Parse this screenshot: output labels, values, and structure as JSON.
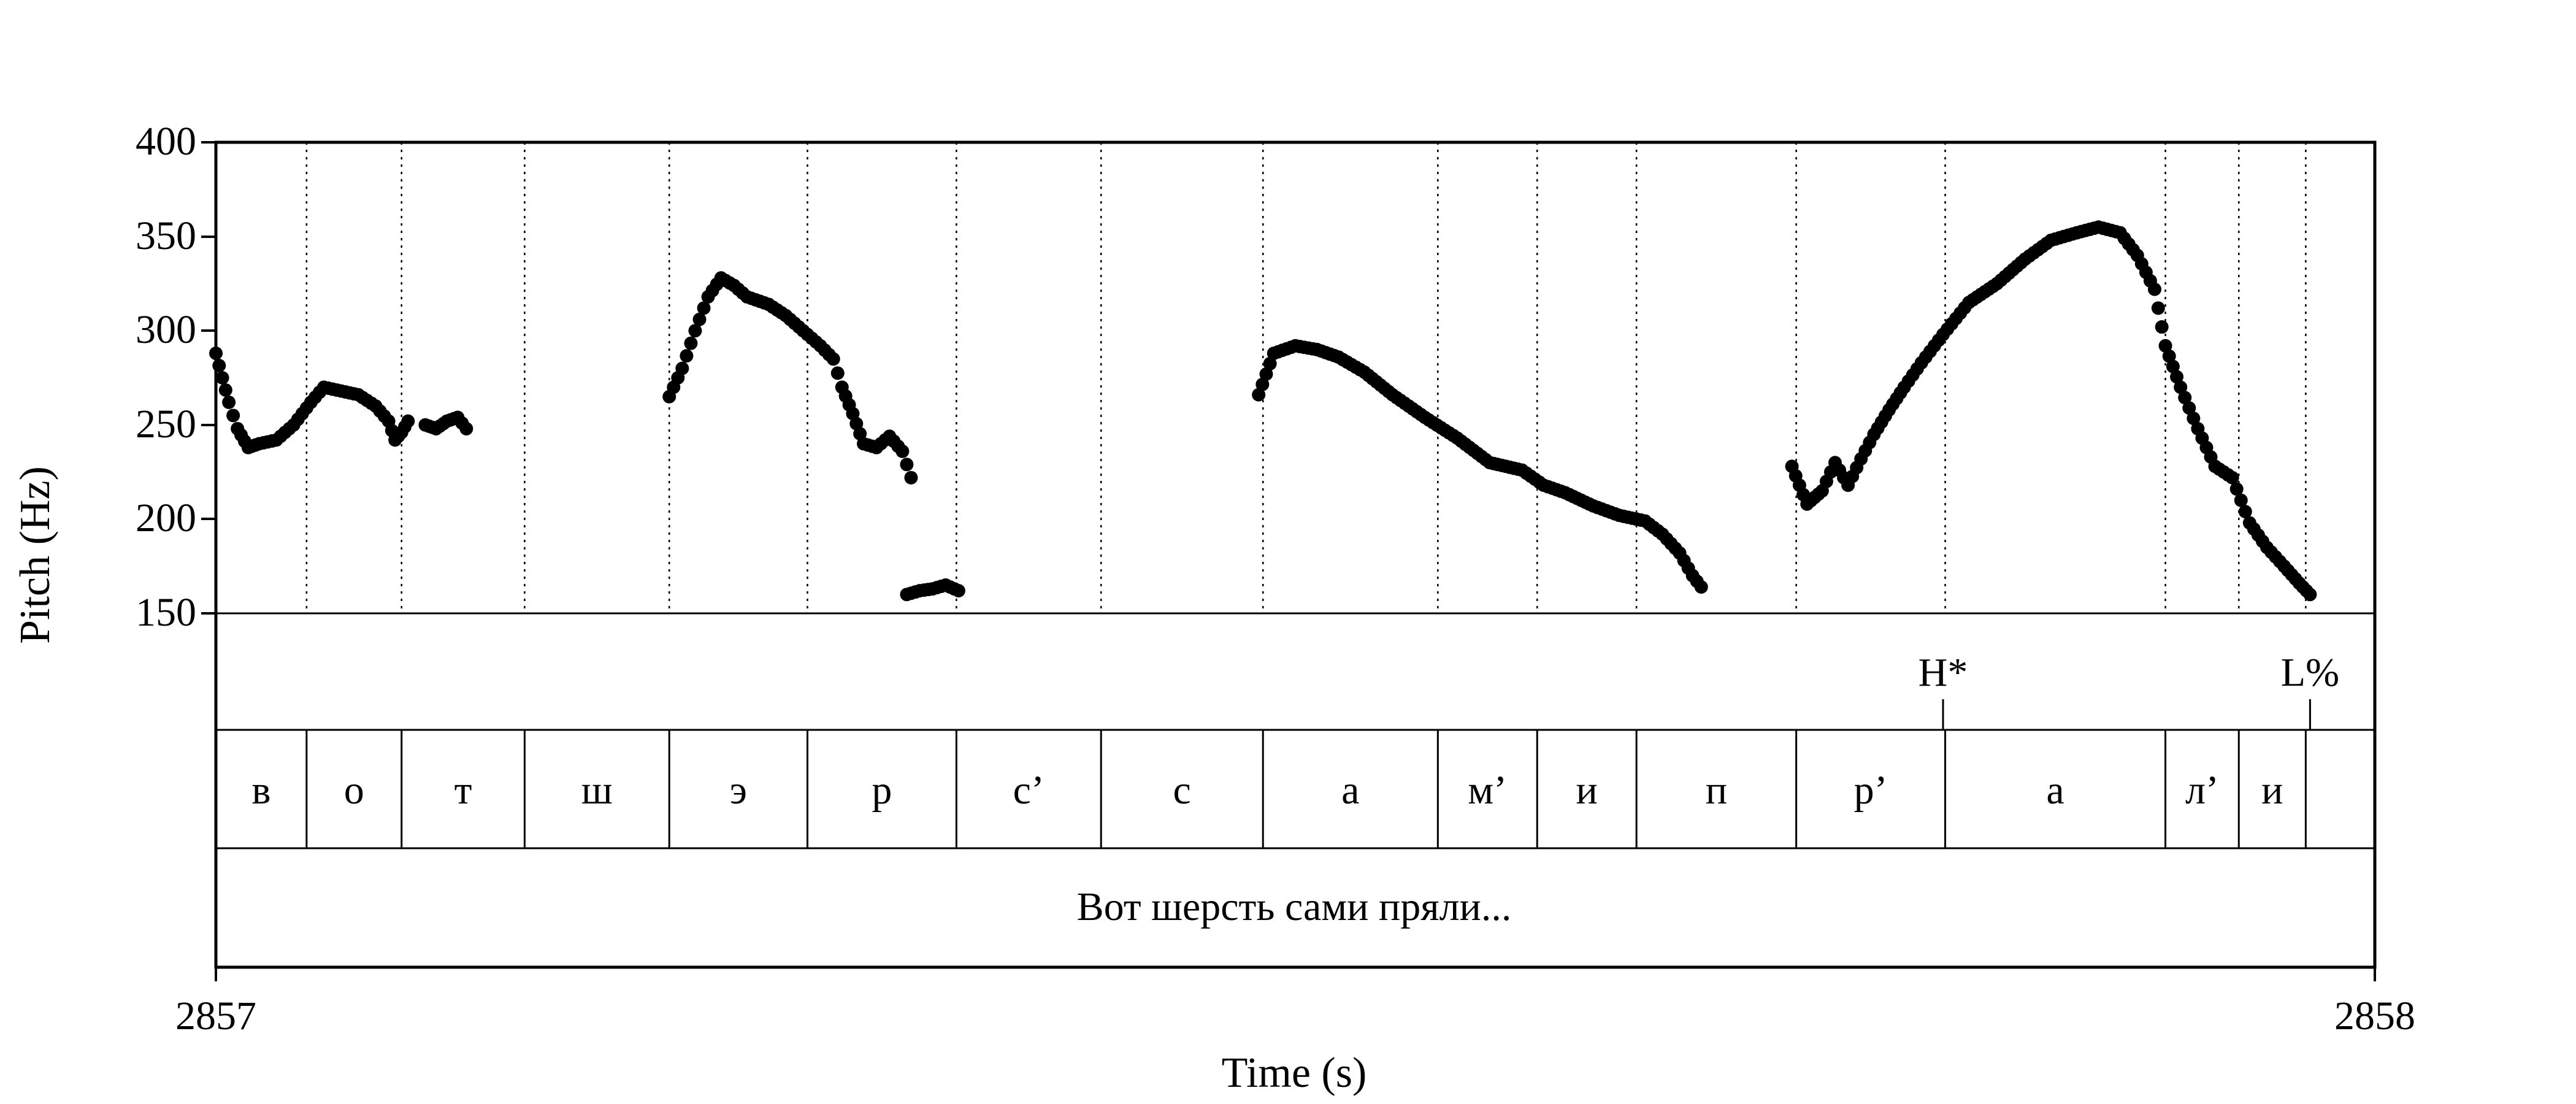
{
  "chart_data": {
    "type": "scatter",
    "xlabel": "Time (s)",
    "ylabel": "Pitch (Hz)",
    "xlim": [
      2857,
      2858
    ],
    "ylim": [
      150,
      400
    ],
    "x_tick_labels": [
      "2857",
      "2858"
    ],
    "y_ticks": [
      150,
      200,
      250,
      300,
      350,
      400
    ],
    "y_tick_labels": [
      "150",
      "200",
      "250",
      "300",
      "350",
      "400"
    ],
    "grid": false,
    "tone_tier": [
      {
        "label": "H*",
        "time": 2857.8
      }
    ],
    "boundary_tone": {
      "label": "L%",
      "time": 2857.97
    },
    "segment_boundaries": [
      2857.042,
      2857.086,
      2857.143,
      2857.21,
      2857.274,
      2857.343,
      2857.41,
      2857.485,
      2857.566,
      2857.612,
      2857.658,
      2857.732,
      2857.801,
      2857.903,
      2857.937,
      2857.968
    ],
    "segments": [
      "в",
      "о",
      "т",
      "ш",
      "э",
      "р",
      "с’",
      "с",
      "а",
      "м’",
      "и",
      "п",
      "р’",
      "а",
      "л’",
      "и",
      ""
    ],
    "sentence": "Вот шерсть сами пряли...",
    "pitch_contours": [
      {
        "t": [
          2857.0,
          2857.003,
          2857.006,
          2857.01,
          2857.015,
          2857.02,
          2857.028,
          2857.036,
          2857.044,
          2857.05,
          2857.058,
          2857.066,
          2857.074,
          2857.08,
          2857.083,
          2857.086,
          2857.089
        ],
        "f0": [
          288,
          275,
          262,
          248,
          238,
          240,
          242,
          250,
          262,
          270,
          268,
          266,
          260,
          252,
          242,
          246,
          252
        ]
      },
      {
        "t": [
          2857.097,
          2857.102,
          2857.107,
          2857.112,
          2857.116
        ],
        "f0": [
          250,
          248,
          252,
          254,
          248
        ]
      },
      {
        "t": [
          2857.21,
          2857.216,
          2857.222,
          2857.228,
          2857.234,
          2857.24,
          2857.246,
          2857.256,
          2857.264,
          2857.272,
          2857.28,
          2857.286,
          2857.29,
          2857.295,
          2857.3,
          2857.306,
          2857.312,
          2857.318,
          2857.322
        ],
        "f0": [
          265,
          280,
          300,
          318,
          328,
          324,
          318,
          314,
          308,
          300,
          292,
          285,
          270,
          256,
          240,
          238,
          244,
          236,
          222
        ]
      },
      {
        "t": [
          2857.32,
          2857.326,
          2857.332,
          2857.338,
          2857.344
        ],
        "f0": [
          160,
          162,
          163,
          165,
          162
        ]
      },
      {
        "t": [
          2857.483,
          2857.49,
          2857.5,
          2857.51,
          2857.52,
          2857.532,
          2857.545,
          2857.56,
          2857.575,
          2857.59,
          2857.605,
          2857.615,
          2857.625,
          2857.638,
          2857.65,
          2857.662,
          2857.67,
          2857.678,
          2857.684,
          2857.688
        ],
        "f0": [
          266,
          288,
          292,
          290,
          286,
          278,
          266,
          254,
          243,
          230,
          226,
          218,
          214,
          207,
          202,
          199,
          192,
          182,
          170,
          164
        ]
      },
      {
        "t": [
          2857.73,
          2857.737,
          2857.744,
          2857.75,
          2857.756,
          2857.762,
          2857.768,
          2857.775,
          2857.782,
          2857.79,
          2857.8,
          2857.812,
          2857.825,
          2857.838,
          2857.85,
          2857.862,
          2857.872,
          2857.882,
          2857.89,
          2857.898,
          2857.903,
          2857.91,
          2857.918,
          2857.926,
          2857.934,
          2857.942,
          2857.95,
          2857.958,
          2857.965,
          2857.97
        ],
        "f0": [
          228,
          208,
          215,
          230,
          218,
          232,
          245,
          258,
          270,
          283,
          298,
          315,
          325,
          338,
          348,
          352,
          355,
          352,
          340,
          322,
          292,
          270,
          248,
          228,
          222,
          198,
          185,
          175,
          166,
          160
        ]
      }
    ]
  }
}
